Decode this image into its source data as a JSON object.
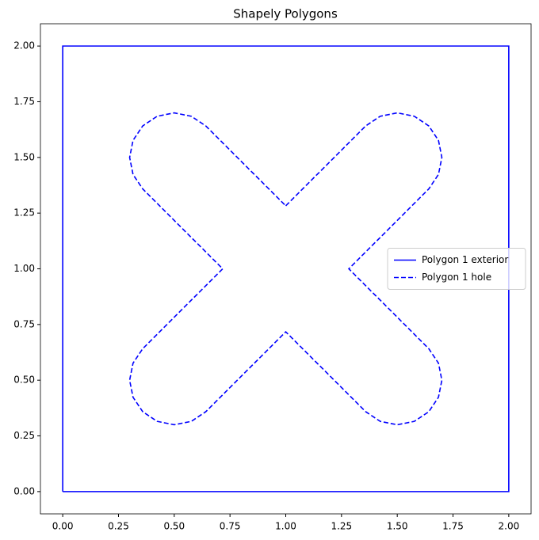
{
  "chart_data": {
    "type": "line",
    "title": "Shapely Polygons",
    "xlim": [
      -0.1,
      2.1
    ],
    "ylim": [
      -0.1,
      2.1
    ],
    "xticks": [
      {
        "value": 0,
        "label": "0.00"
      },
      {
        "value": 0.25,
        "label": "0.25"
      },
      {
        "value": 0.5,
        "label": "0.50"
      },
      {
        "value": 0.75,
        "label": "0.75"
      },
      {
        "value": 1,
        "label": "1.00"
      },
      {
        "value": 1.25,
        "label": "1.25"
      },
      {
        "value": 1.5,
        "label": "1.50"
      },
      {
        "value": 1.75,
        "label": "1.75"
      },
      {
        "value": 2,
        "label": "2.00"
      }
    ],
    "yticks": [
      {
        "value": 0,
        "label": "0.00"
      },
      {
        "value": 0.25,
        "label": "0.25"
      },
      {
        "value": 0.5,
        "label": "0.50"
      },
      {
        "value": 0.75,
        "label": "0.75"
      },
      {
        "value": 1,
        "label": "1.00"
      },
      {
        "value": 1.25,
        "label": "1.25"
      },
      {
        "value": 1.5,
        "label": "1.50"
      },
      {
        "value": 1.75,
        "label": "1.75"
      },
      {
        "value": 2,
        "label": "2.00"
      }
    ],
    "grid": false,
    "legend": "right",
    "series": [
      {
        "name": "Polygon 1 exterior",
        "color": "#0000ff",
        "linestyle": "solid",
        "x": [
          0,
          2,
          2,
          0,
          0
        ],
        "values": [
          0,
          0,
          2,
          2,
          0
        ]
      },
      {
        "name": "Polygon 1 hole",
        "color": "#0000ff",
        "linestyle": "dashed",
        "x": [
          1,
          1.3586,
          1.4235,
          1.5,
          1.5765,
          1.6414,
          1.6848,
          1.7,
          1.6848,
          1.6414,
          1.2828,
          1.6414,
          1.6848,
          1.7,
          1.6848,
          1.6414,
          1.5765,
          1.5,
          1.4235,
          1.3586,
          1,
          0.6414,
          0.5765,
          0.5,
          0.4235,
          0.3586,
          0.3152,
          0.3,
          0.3152,
          0.3586,
          0.7172,
          0.3586,
          0.3152,
          0.3,
          0.3152,
          0.3586,
          0.4235,
          0.5,
          0.5765,
          0.6414,
          1
        ],
        "values": [
          1.2828,
          1.6414,
          1.6848,
          1.7,
          1.6848,
          1.6414,
          1.5765,
          1.5,
          1.4235,
          1.3586,
          1,
          0.6414,
          0.5765,
          0.5,
          0.4235,
          0.3586,
          0.3152,
          0.3,
          0.3152,
          0.3586,
          0.7172,
          0.3586,
          0.3152,
          0.3,
          0.3152,
          0.3586,
          0.4235,
          0.5,
          0.5765,
          0.6414,
          1,
          1.3586,
          1.4235,
          1.5,
          1.5765,
          1.6414,
          1.6848,
          1.7,
          1.6848,
          1.6414,
          1.2828
        ]
      }
    ]
  }
}
